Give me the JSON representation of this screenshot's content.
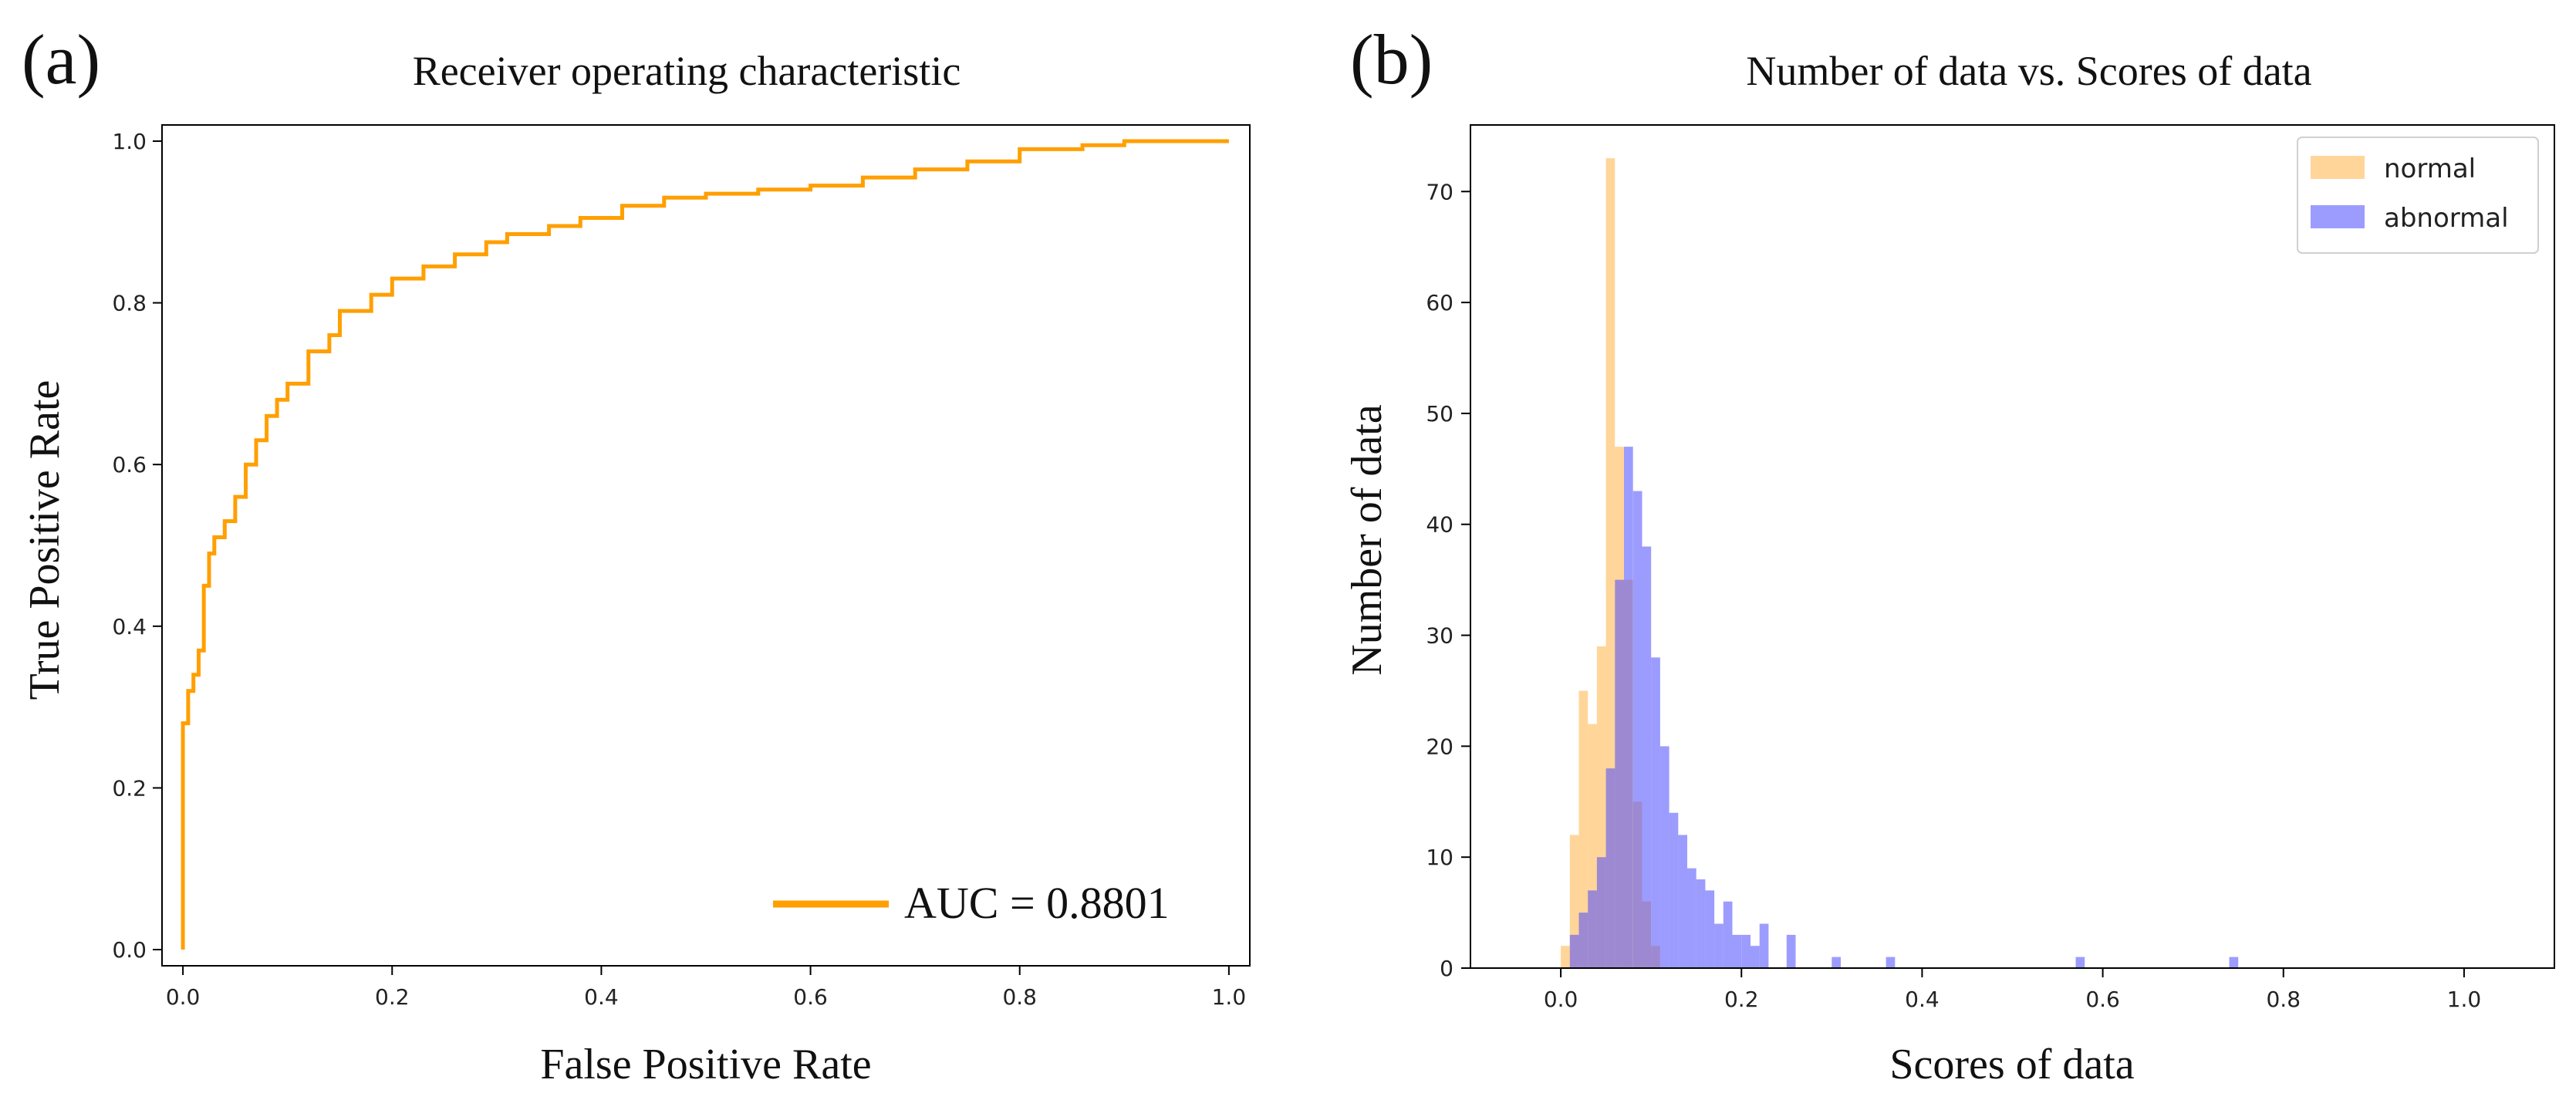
{
  "chart_data": [
    {
      "panel": "(a)",
      "type": "line",
      "title": "Receiver operating characteristic",
      "xlabel": "False Positive Rate",
      "ylabel": "True Positive Rate",
      "xlim": [
        -0.02,
        1.02
      ],
      "ylim": [
        -0.02,
        1.02
      ],
      "xticks": [
        "0.0",
        "0.2",
        "0.4",
        "0.6",
        "0.8",
        "1.0"
      ],
      "yticks": [
        "0.0",
        "0.2",
        "0.4",
        "0.6",
        "0.8",
        "1.0"
      ],
      "legend": {
        "label": "AUC = 0.8801",
        "placement": "lower-right"
      },
      "grid": false,
      "line_color": "#ff9f00",
      "series": [
        {
          "name": "ROC",
          "x": [
            0.0,
            0.0,
            0.005,
            0.005,
            0.01,
            0.01,
            0.015,
            0.015,
            0.02,
            0.02,
            0.025,
            0.025,
            0.03,
            0.03,
            0.04,
            0.04,
            0.05,
            0.05,
            0.06,
            0.06,
            0.07,
            0.07,
            0.08,
            0.08,
            0.09,
            0.09,
            0.1,
            0.1,
            0.12,
            0.12,
            0.14,
            0.14,
            0.15,
            0.15,
            0.18,
            0.18,
            0.2,
            0.2,
            0.23,
            0.23,
            0.26,
            0.26,
            0.29,
            0.29,
            0.31,
            0.31,
            0.35,
            0.35,
            0.38,
            0.38,
            0.42,
            0.42,
            0.46,
            0.46,
            0.5,
            0.5,
            0.55,
            0.55,
            0.6,
            0.6,
            0.65,
            0.65,
            0.7,
            0.7,
            0.75,
            0.75,
            0.8,
            0.8,
            0.86,
            0.86,
            0.9,
            0.9,
            0.93,
            0.93,
            1.0
          ],
          "y": [
            0.0,
            0.28,
            0.28,
            0.32,
            0.32,
            0.34,
            0.34,
            0.37,
            0.37,
            0.45,
            0.45,
            0.49,
            0.49,
            0.51,
            0.51,
            0.53,
            0.53,
            0.56,
            0.56,
            0.6,
            0.6,
            0.63,
            0.63,
            0.66,
            0.66,
            0.68,
            0.68,
            0.7,
            0.7,
            0.74,
            0.74,
            0.76,
            0.76,
            0.79,
            0.79,
            0.81,
            0.81,
            0.83,
            0.83,
            0.845,
            0.845,
            0.86,
            0.86,
            0.875,
            0.875,
            0.885,
            0.885,
            0.895,
            0.895,
            0.905,
            0.905,
            0.92,
            0.92,
            0.93,
            0.93,
            0.935,
            0.935,
            0.94,
            0.94,
            0.945,
            0.945,
            0.955,
            0.955,
            0.965,
            0.965,
            0.975,
            0.975,
            0.99,
            0.99,
            0.995,
            0.995,
            1.0,
            1.0,
            1.0,
            1.0
          ]
        }
      ]
    },
    {
      "panel": "(b)",
      "type": "bar",
      "subtype": "histogram",
      "title": "Number of data vs. Scores of data",
      "xlabel": "Scores of data",
      "ylabel": "Number of data",
      "xlim": [
        -0.1,
        1.1
      ],
      "ylim": [
        0,
        76
      ],
      "xticks": [
        "0.0",
        "0.2",
        "0.4",
        "0.6",
        "0.8",
        "1.0"
      ],
      "yticks": [
        "0",
        "10",
        "20",
        "30",
        "40",
        "50",
        "60",
        "70"
      ],
      "legend": {
        "placement": "top-right",
        "entries": [
          "normal",
          "abnormal"
        ]
      },
      "grid": false,
      "bin_width": 0.01,
      "series": [
        {
          "name": "normal",
          "color": "#ffb347",
          "opacity": 0.55,
          "bin_starts": [
            0.0,
            0.01,
            0.02,
            0.03,
            0.04,
            0.05,
            0.06,
            0.07,
            0.08,
            0.09,
            0.1
          ],
          "counts": [
            2,
            12,
            25,
            22,
            29,
            73,
            47,
            35,
            15,
            6,
            2
          ]
        },
        {
          "name": "abnormal",
          "color": "#4b4bff",
          "opacity": 0.55,
          "bin_starts": [
            0.01,
            0.02,
            0.03,
            0.04,
            0.05,
            0.06,
            0.07,
            0.08,
            0.09,
            0.1,
            0.11,
            0.12,
            0.13,
            0.14,
            0.15,
            0.16,
            0.17,
            0.18,
            0.19,
            0.2,
            0.21,
            0.22,
            0.25,
            0.3,
            0.36,
            0.57,
            0.74
          ],
          "counts": [
            3,
            5,
            7,
            10,
            18,
            35,
            47,
            43,
            38,
            28,
            20,
            14,
            12,
            9,
            8,
            7,
            4,
            6,
            3,
            3,
            2,
            4,
            3,
            1,
            1,
            1,
            1
          ]
        }
      ]
    }
  ],
  "panels": {
    "a": {
      "tag": "(a)"
    },
    "b": {
      "tag": "(b)"
    }
  }
}
